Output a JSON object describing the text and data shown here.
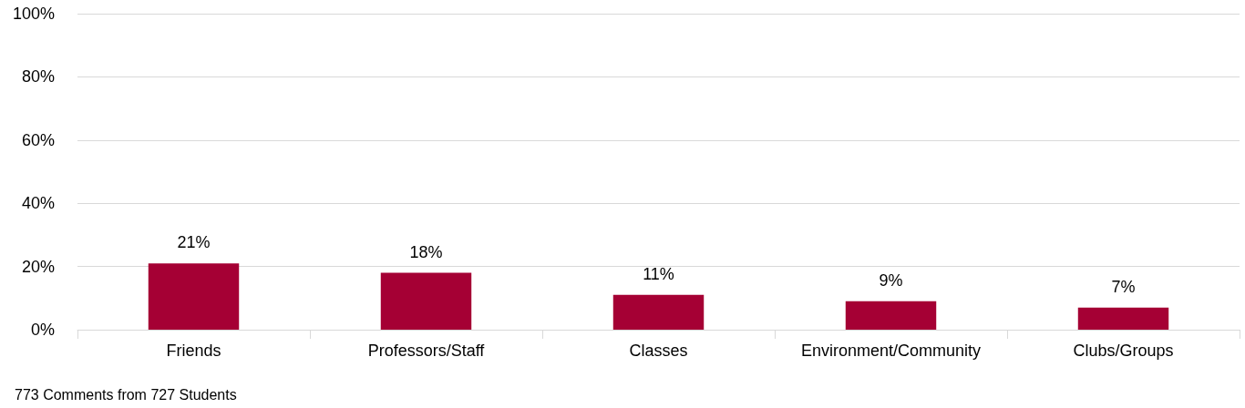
{
  "chart_data": {
    "type": "bar",
    "categories": [
      "Friends",
      "Professors/Staff",
      "Classes",
      "Environment/Community",
      "Clubs/Groups"
    ],
    "values": [
      21,
      18,
      11,
      9,
      7
    ],
    "value_labels": [
      "21%",
      "18%",
      "11%",
      "9%",
      "7%"
    ],
    "color": "#a50034",
    "ylim": [
      0,
      100
    ],
    "yticks": [
      {
        "value": 0,
        "label": "0%"
      },
      {
        "value": 20,
        "label": "20%"
      },
      {
        "value": 40,
        "label": "40%"
      },
      {
        "value": 60,
        "label": "60%"
      },
      {
        "value": 80,
        "label": "80%"
      },
      {
        "value": 100,
        "label": "100%"
      }
    ],
    "grid": "y",
    "annotations": [
      "773 Comments from 727 Students"
    ]
  }
}
